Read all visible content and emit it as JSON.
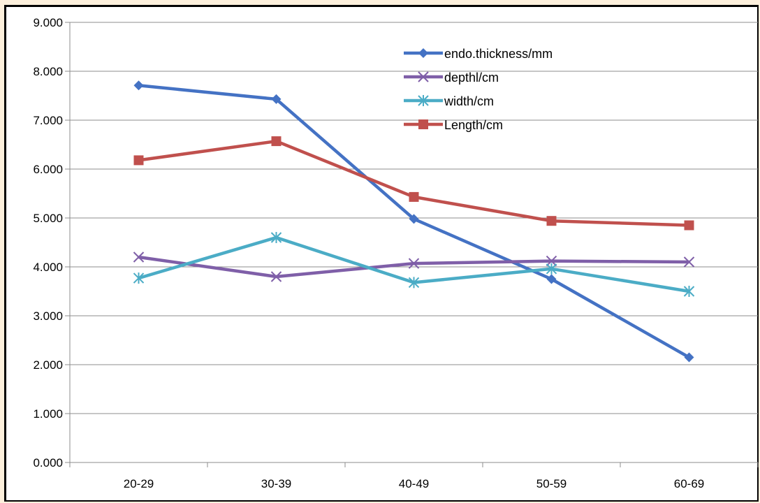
{
  "chart_data": {
    "type": "line",
    "categories": [
      "20-29",
      "30-39",
      "40-49",
      "50-59",
      "60-69"
    ],
    "ylim": [
      0,
      9
    ],
    "yticks": [
      "0.000",
      "1.000",
      "2.000",
      "3.000",
      "4.000",
      "5.000",
      "6.000",
      "7.000",
      "8.000",
      "9.000"
    ],
    "grid": true,
    "legend_position": "top-right",
    "series": [
      {
        "name": "endo.thickness/mm",
        "values": [
          7.71,
          7.43,
          4.98,
          3.75,
          2.15
        ],
        "color": "#4472c4",
        "marker": "diamond"
      },
      {
        "name": "depthl/cm",
        "values": [
          4.2,
          3.8,
          4.07,
          4.12,
          4.1
        ],
        "color": "#7f5fa8",
        "marker": "x"
      },
      {
        "name": "width/cm",
        "values": [
          3.77,
          4.6,
          3.68,
          3.96,
          3.5
        ],
        "color": "#4bacc6",
        "marker": "star"
      },
      {
        "name": "Length/cm",
        "values": [
          6.18,
          6.57,
          5.43,
          4.94,
          4.85
        ],
        "color": "#c0504d",
        "marker": "square"
      }
    ]
  }
}
